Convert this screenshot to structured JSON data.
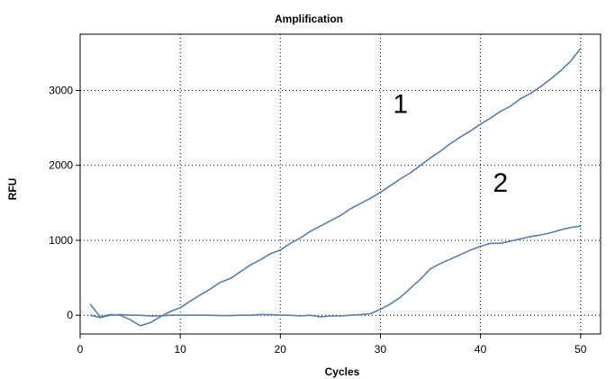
{
  "chart_data": {
    "type": "line",
    "title": "Amplification",
    "xlabel": "Cycles",
    "ylabel": "RFU",
    "xlim": [
      0,
      52
    ],
    "ylim": [
      -250,
      3750
    ],
    "xticks": [
      0,
      10,
      20,
      30,
      40,
      50
    ],
    "yticks": [
      0,
      1000,
      2000,
      3000
    ],
    "grid": true,
    "line_color": "#5b7fa6",
    "series": [
      {
        "x": [
          1,
          2,
          3,
          4,
          5,
          6,
          7,
          8,
          9,
          10,
          11,
          12,
          13,
          14,
          15,
          16,
          17,
          18,
          19,
          20,
          21,
          22,
          23,
          24,
          25,
          26,
          27,
          28,
          29,
          30,
          31,
          32,
          33,
          34,
          35,
          36,
          37,
          38,
          39,
          40,
          41,
          42,
          43,
          44,
          45,
          46,
          47,
          48,
          49,
          50
        ],
        "values": [
          150,
          -20,
          10,
          0,
          -60,
          -140,
          -100,
          -20,
          50,
          100,
          190,
          270,
          350,
          440,
          490,
          580,
          670,
          740,
          820,
          870,
          960,
          1030,
          1120,
          1190,
          1260,
          1330,
          1420,
          1490,
          1560,
          1640,
          1730,
          1820,
          1900,
          2000,
          2100,
          2190,
          2290,
          2380,
          2460,
          2550,
          2630,
          2720,
          2790,
          2890,
          2960,
          3050,
          3150,
          3260,
          3390,
          3560
        ]
      },
      {
        "x": [
          1,
          2,
          3,
          4,
          5,
          6,
          7,
          8,
          9,
          10,
          11,
          12,
          13,
          14,
          15,
          16,
          17,
          18,
          19,
          20,
          21,
          22,
          23,
          24,
          25,
          26,
          27,
          28,
          29,
          30,
          31,
          32,
          33,
          34,
          35,
          36,
          37,
          38,
          39,
          40,
          41,
          42,
          43,
          44,
          45,
          46,
          47,
          48,
          49,
          50
        ],
        "values": [
          0,
          -30,
          0,
          10,
          0,
          0,
          -10,
          -10,
          0,
          0,
          0,
          0,
          0,
          -5,
          -5,
          0,
          0,
          10,
          10,
          0,
          0,
          -10,
          0,
          -20,
          -10,
          -10,
          0,
          10,
          20,
          80,
          150,
          240,
          360,
          480,
          620,
          690,
          750,
          810,
          870,
          920,
          960,
          960,
          990,
          1020,
          1050,
          1070,
          1100,
          1140,
          1170,
          1190
        ]
      }
    ],
    "annotations": [
      {
        "text": "1",
        "x": 32,
        "y": 2700
      },
      {
        "text": "2",
        "x": 42,
        "y": 1650
      }
    ]
  }
}
